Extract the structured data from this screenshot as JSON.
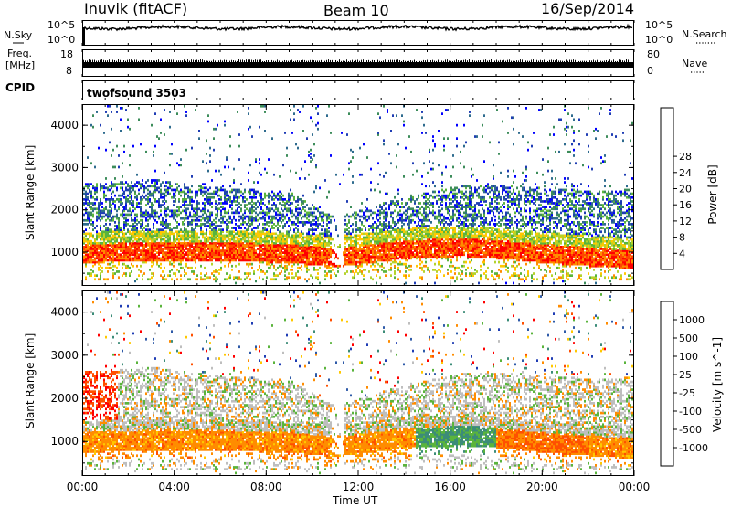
{
  "header": {
    "station": "Inuvik (fitACF)",
    "beam": "Beam 10",
    "date": "16/Sep/2014"
  },
  "noise_panel": {
    "left_label": "N.Sky",
    "right_label": "N.Search",
    "left_ticks": [
      "10^5",
      "10^0"
    ],
    "right_ticks": [
      "10^5",
      "10^0"
    ]
  },
  "freq_panel": {
    "left_label_1": "Freq.",
    "left_label_2": "[MHz]",
    "left_ticks": [
      "18",
      "8"
    ],
    "right_label": "Nave",
    "right_ticks": [
      "80",
      "0"
    ]
  },
  "cpid_panel": {
    "label": "CPID",
    "program": "twofsound 3503"
  },
  "colors": {
    "power": [
      "#0000ff",
      "#1e3cb4",
      "#2e6b8e",
      "#3c8c5a",
      "#5ab43c",
      "#b4d22a",
      "#ffc800",
      "#ff8c00",
      "#ff4600",
      "#ff0000"
    ],
    "velocity": [
      "#1e3cb4",
      "#2e5aa8",
      "#3c8c78",
      "#5ab43c",
      "#bebebe",
      "#ffc800",
      "#ff8c00",
      "#ff5000",
      "#ff0000"
    ]
  },
  "chart_data": [
    {
      "type": "heatmap",
      "title": "",
      "xlabel": "",
      "ylabel": "Slant Range [km]",
      "x_ticks": [
        "00:00",
        "04:00",
        "08:00",
        "12:00",
        "16:00",
        "20:00",
        "00:00"
      ],
      "y_ticks": [
        1000,
        2000,
        3000,
        4000
      ],
      "ylim": [
        200,
        4500
      ],
      "colorbar_label": "Power [dB]",
      "colorbar_ticks": [
        "4",
        "8",
        "12",
        "16",
        "20",
        "24",
        "28"
      ],
      "summary": [
        {
          "t": 0,
          "core_km": 950,
          "top_km": 2600
        },
        {
          "t": 3,
          "core_km": 1000,
          "top_km": 2700
        },
        {
          "t": 6,
          "core_km": 1000,
          "top_km": 2500
        },
        {
          "t": 9,
          "core_km": 950,
          "top_km": 2400
        },
        {
          "t": 11,
          "core_km": 850,
          "top_km": 1800
        },
        {
          "t": 14,
          "core_km": 1050,
          "top_km": 2300
        },
        {
          "t": 17,
          "core_km": 1100,
          "top_km": 2600
        },
        {
          "t": 20,
          "core_km": 950,
          "top_km": 2500
        },
        {
          "t": 24,
          "core_km": 800,
          "top_km": 2400
        }
      ]
    },
    {
      "type": "heatmap",
      "title": "",
      "xlabel": "Time UT",
      "ylabel": "Slant Range [km]",
      "x_ticks": [
        "00:00",
        "04:00",
        "08:00",
        "12:00",
        "16:00",
        "20:00",
        "00:00"
      ],
      "y_ticks": [
        1000,
        2000,
        3000,
        4000
      ],
      "ylim": [
        200,
        4500
      ],
      "colorbar_label": "Velocity [m s^-1]",
      "colorbar_ticks": [
        "1000",
        "500",
        "100",
        "25",
        "-25",
        "-100",
        "-500",
        "-1000"
      ],
      "summary": [
        {
          "t": 0,
          "dominant_velocity": -200
        },
        {
          "t": 6,
          "dominant_velocity": -150
        },
        {
          "t": 12,
          "dominant_velocity": -100
        },
        {
          "t": 16,
          "dominant_velocity": 150
        },
        {
          "t": 20,
          "dominant_velocity": -300
        },
        {
          "t": 24,
          "dominant_velocity": -200
        }
      ]
    }
  ]
}
